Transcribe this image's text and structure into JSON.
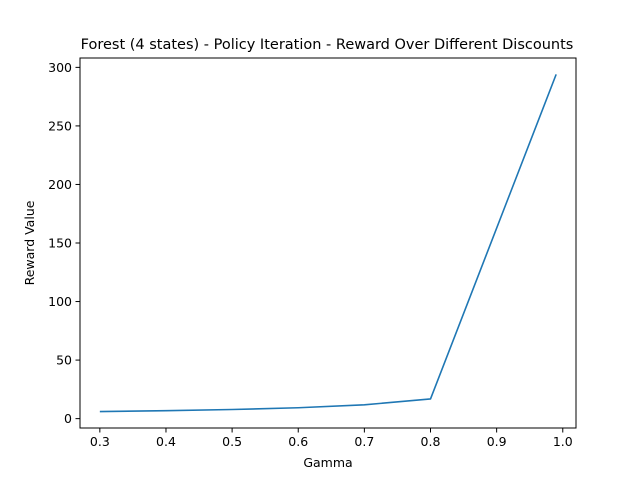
{
  "chart_data": {
    "type": "line",
    "title": "Forest (4 states) - Policy Iteration - Reward Over Different Discounts",
    "xlabel": "Gamma",
    "ylabel": "Reward Value",
    "xlim": [
      0.27,
      1.02
    ],
    "ylim": [
      -8,
      308
    ],
    "xticks": [
      0.3,
      0.4,
      0.5,
      0.6,
      0.7,
      0.8,
      0.9,
      1.0
    ],
    "xtick_labels": [
      "0.3",
      "0.4",
      "0.5",
      "0.6",
      "0.7",
      "0.8",
      "0.9",
      "1.0"
    ],
    "yticks": [
      0,
      50,
      100,
      150,
      200,
      250,
      300
    ],
    "ytick_labels": [
      "0",
      "50",
      "100",
      "150",
      "200",
      "250",
      "300"
    ],
    "grid": false,
    "legend": null,
    "series": [
      {
        "color": "#1f77b4",
        "x": [
          0.3,
          0.4,
          0.5,
          0.6,
          0.7,
          0.8,
          0.99
        ],
        "y": [
          6.0,
          6.8,
          7.8,
          9.3,
          11.8,
          16.8,
          294.0
        ]
      }
    ]
  }
}
